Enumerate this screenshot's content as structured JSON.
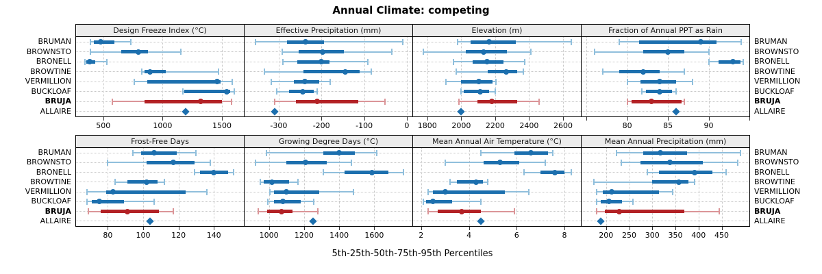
{
  "title": "Annual Climate: competing",
  "xlabel": "5th-25th-50th-75th-95th Percentiles",
  "sites": [
    "BRUMAN",
    "BROWNSTO",
    "BRONELL",
    "BROWTINE",
    "VERMILLION",
    "BUCKLOAF",
    "BRUJA",
    "ALLAIRE"
  ],
  "bold_site": "BRUJA",
  "point_only_site": "ALLAIRE",
  "colors": {
    "blue": "#1c6fae",
    "blue_light": "#90bfdc",
    "red": "#b32125",
    "red_light": "#db9598",
    "header_bg": "#ececec",
    "grid": "#c6c6c6",
    "tick": "#333333"
  },
  "chart_data": {
    "type": "dotplot-percentiles",
    "percentile_labels": [
      "5th",
      "25th",
      "50th",
      "75th",
      "95th"
    ],
    "legend_note": "whisker = 5th-95th, band = 25th-75th, dot = median, diamond = single value",
    "panels": [
      {
        "title": "Design Freeze Index (°C)",
        "ticks": [
          500,
          1000,
          1500
        ],
        "edge_ticks": [],
        "xlim": [
          270,
          1685
        ],
        "series": {
          "BRUMAN": [
            390,
            420,
            475,
            595,
            730
          ],
          "BROWNSTO": [
            390,
            650,
            795,
            875,
            1155
          ],
          "BRONELL": [
            345,
            355,
            385,
            430,
            530
          ],
          "BROWTINE": [
            825,
            845,
            895,
            1025,
            1470
          ],
          "VERMILLION": [
            760,
            870,
            1460,
            1490,
            1585
          ],
          "BUCKLOAF": [
            1170,
            1180,
            1540,
            1570,
            1605
          ],
          "BRUJA": [
            575,
            845,
            1320,
            1500,
            1580
          ],
          "ALLAIRE": 1195
        }
      },
      {
        "title": "Effective Precipitation (mm)",
        "ticks": [
          -300,
          -200,
          -100,
          0
        ],
        "edge_ticks": [],
        "xlim": [
          -380,
          13
        ],
        "series": {
          "BRUMAN": [
            -354,
            -280,
            -238,
            -194,
            -10
          ],
          "BROWNSTO": [
            -292,
            -253,
            -197,
            -147,
            -36
          ],
          "BRONELL": [
            -290,
            -256,
            -200,
            -181,
            -92
          ],
          "BROWTINE": [
            -333,
            -242,
            -145,
            -111,
            -84
          ],
          "VERMILLION": [
            -317,
            -265,
            -239,
            -205,
            -180
          ],
          "BUCKLOAF": [
            -305,
            -276,
            -244,
            -218,
            -210
          ],
          "BRUJA": [
            -310,
            -260,
            -210,
            -113,
            -51
          ],
          "ALLAIRE": -310
        }
      },
      {
        "title": "Elevation (m)",
        "ticks": [
          1800,
          2000,
          2200,
          2400,
          2600
        ],
        "edge_ticks": [],
        "xlim": [
          1716,
          2705
        ],
        "series": {
          "BRUMAN": [
            1980,
            2055,
            2165,
            2320,
            2650
          ],
          "BROWNSTO": [
            1775,
            2025,
            2130,
            2270,
            2410
          ],
          "BRONELL": [
            1955,
            2065,
            2150,
            2250,
            2375
          ],
          "BROWTINE": [
            1970,
            2155,
            2265,
            2330,
            2365
          ],
          "VERMILLION": [
            1910,
            2000,
            2105,
            2185,
            2205
          ],
          "BUCKLOAF": [
            2000,
            2015,
            2110,
            2165,
            2200
          ],
          "BRUJA": [
            1985,
            2095,
            2180,
            2330,
            2460
          ],
          "ALLAIRE": 2000
        }
      },
      {
        "title": "Fraction of Annual PPT as Rain",
        "ticks": [
          80,
          85,
          90
        ],
        "edge_ticks": [
          75,
          95
        ],
        "xlim": [
          74.4,
          95.0
        ],
        "series": {
          "BRUMAN": [
            79,
            81.5,
            89,
            91,
            94
          ],
          "BROWNSTO": [
            76,
            82,
            85,
            87,
            90
          ],
          "BRONELL": [
            90,
            91.2,
            93,
            93.9,
            94.2
          ],
          "BROWTINE": [
            77,
            79,
            82,
            84,
            87
          ],
          "VERMILLION": [
            80,
            81.6,
            84,
            86,
            88
          ],
          "BUCKLOAF": [
            81.8,
            82.3,
            84,
            85.5,
            86
          ],
          "BRUJA": [
            80,
            80.5,
            83,
            86.7,
            87
          ],
          "ALLAIRE": 86
        }
      },
      {
        "title": "Frost-Free Days",
        "ticks": [
          80,
          100,
          120,
          140
        ],
        "edge_ticks": [],
        "xlim": [
          62,
          157
        ],
        "series": {
          "BRUMAN": [
            94,
            99,
            106,
            119,
            130
          ],
          "BROWNSTO": [
            80,
            102,
            117,
            129,
            138
          ],
          "BRONELL": [
            129,
            132,
            140,
            148,
            151
          ],
          "BROWTINE": [
            84,
            91,
            102,
            108,
            112
          ],
          "VERMILLION": [
            68,
            79,
            83,
            124,
            136
          ],
          "BUCKLOAF": [
            68,
            71,
            75,
            89,
            106
          ],
          "BRUJA": [
            69,
            76,
            91,
            109,
            117
          ],
          "ALLAIRE": 104
        }
      },
      {
        "title": "Growing Degree Days (°C)",
        "ticks": [
          1000,
          1200,
          1400,
          1600
        ],
        "edge_ticks": [],
        "xlim": [
          861,
          1817
        ],
        "series": {
          "BRUMAN": [
            985,
            1310,
            1400,
            1490,
            1615
          ],
          "BROWNSTO": [
            925,
            1100,
            1210,
            1330,
            1470
          ],
          "BRONELL": [
            1310,
            1430,
            1585,
            1680,
            1765
          ],
          "BROWTINE": [
            950,
            970,
            1015,
            1115,
            1165
          ],
          "VERMILLION": [
            1005,
            1030,
            1100,
            1285,
            1480
          ],
          "BUCKLOAF": [
            995,
            1030,
            1080,
            1180,
            1255
          ],
          "BRUJA": [
            940,
            990,
            1070,
            1135,
            1280
          ],
          "ALLAIRE": 1250
        }
      },
      {
        "title": "Mean Annual Air Temperature (°C)",
        "ticks": [
          2,
          4,
          6,
          8
        ],
        "edge_ticks": [],
        "xlim": [
          1.66,
          8.69
        ],
        "series": {
          "BRUMAN": [
            4.5,
            5.9,
            6.6,
            7.3,
            7.5
          ],
          "BROWNSTO": [
            3.0,
            4.6,
            5.3,
            6.1,
            7.2
          ],
          "BRONELL": [
            6.3,
            7.0,
            7.6,
            8.0,
            8.3
          ],
          "BROWTINE": [
            3.2,
            3.5,
            4.3,
            4.6,
            4.8
          ],
          "VERMILLION": [
            2.3,
            2.5,
            3.0,
            5.5,
            6.5
          ],
          "BUCKLOAF": [
            2.1,
            2.2,
            2.5,
            3.3,
            4.5
          ],
          "BRUJA": [
            2.3,
            2.7,
            3.7,
            4.5,
            5.9
          ],
          "ALLAIRE": 4.5
        }
      },
      {
        "title": "Mean Annual Precipitation (mm)",
        "ticks": [
          200,
          250,
          300,
          350,
          400,
          450
        ],
        "edge_ticks": [],
        "xlim": [
          147,
          510
        ],
        "series": {
          "BRUMAN": [
            222,
            280,
            318,
            375,
            490
          ],
          "BROWNSTO": [
            233,
            275,
            338,
            410,
            485
          ],
          "BRONELL": [
            289,
            315,
            392,
            430,
            460
          ],
          "BROWTINE": [
            173,
            300,
            358,
            378,
            392
          ],
          "VERMILLION": [
            179,
            193,
            212,
            314,
            344
          ],
          "BUCKLOAF": [
            180,
            189,
            206,
            235,
            258
          ],
          "BRUJA": [
            180,
            197,
            228,
            370,
            444
          ],
          "ALLAIRE": 189
        }
      }
    ]
  }
}
